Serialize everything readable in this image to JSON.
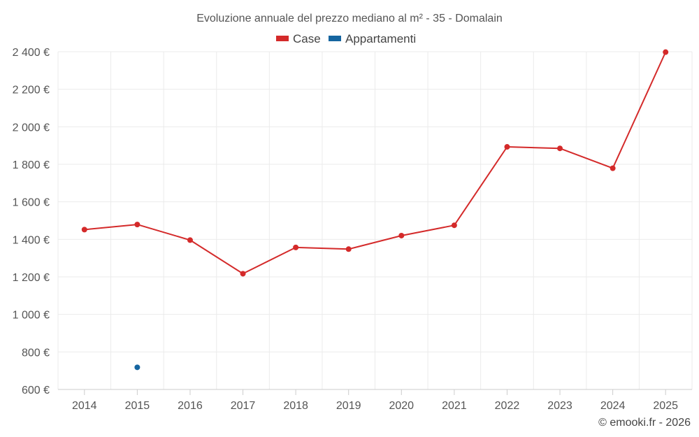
{
  "chart_data": {
    "type": "line",
    "title": "Evoluzione annuale del prezzo mediano al m² - 35 - Domalain",
    "categories": [
      "2014",
      "2015",
      "2016",
      "2017",
      "2018",
      "2019",
      "2020",
      "2021",
      "2022",
      "2023",
      "2024",
      "2025"
    ],
    "y_ticks": [
      "600 €",
      "800 €",
      "1 000 €",
      "1 200 €",
      "1 400 €",
      "1 600 €",
      "1 800 €",
      "2 000 €",
      "2 200 €",
      "2 400 €"
    ],
    "ylim": [
      600,
      2400
    ],
    "y_step": 200,
    "grid": true,
    "legend_position": "top-center",
    "series": [
      {
        "name": "Case",
        "color": "#d42a2a",
        "values": [
          1452,
          1479,
          1396,
          1217,
          1357,
          1348,
          1420,
          1475,
          1893,
          1885,
          1779,
          2398
        ]
      },
      {
        "name": "Appartamenti",
        "color": "#1565a0",
        "values": [
          null,
          718,
          null,
          null,
          null,
          null,
          null,
          null,
          null,
          null,
          null,
          null
        ]
      }
    ],
    "credit": "© emooki.fr - 2026"
  }
}
